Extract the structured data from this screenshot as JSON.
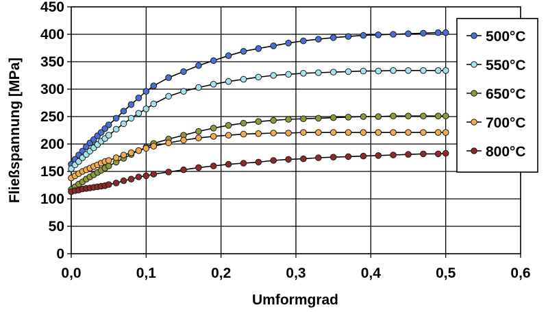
{
  "chart_data": {
    "type": "line",
    "xlabel": "Umformgrad",
    "ylabel": "Fließspannung [MPa]",
    "xlim": [
      0,
      0.6
    ],
    "ylim": [
      0,
      450
    ],
    "x_ticks": [
      "0,0",
      "0,1",
      "0,2",
      "0,3",
      "0,4",
      "0,5",
      "0,6"
    ],
    "y_ticks": [
      "0",
      "50",
      "100",
      "150",
      "200",
      "250",
      "300",
      "350",
      "400",
      "450"
    ],
    "grid": true,
    "legend_position": "right",
    "series": [
      {
        "name": "500°C",
        "color": "#4a6fd0",
        "x": [
          0.0,
          0.005,
          0.01,
          0.015,
          0.02,
          0.025,
          0.03,
          0.035,
          0.04,
          0.045,
          0.05,
          0.06,
          0.07,
          0.08,
          0.09,
          0.1,
          0.11,
          0.13,
          0.15,
          0.17,
          0.19,
          0.21,
          0.23,
          0.25,
          0.27,
          0.29,
          0.31,
          0.33,
          0.35,
          0.37,
          0.39,
          0.41,
          0.43,
          0.45,
          0.47,
          0.49,
          0.5
        ],
        "y": [
          163,
          172,
          180,
          187,
          195,
          202,
          208,
          215,
          221,
          228,
          235,
          247,
          260,
          272,
          284,
          296,
          306,
          321,
          332,
          343,
          352,
          361,
          369,
          374,
          379,
          384,
          388,
          391,
          394,
          396,
          398,
          399,
          400,
          401,
          402,
          403,
          403
        ]
      },
      {
        "name": "550°C",
        "color": "#a6e2ee",
        "x": [
          0.0,
          0.005,
          0.01,
          0.015,
          0.02,
          0.025,
          0.03,
          0.035,
          0.04,
          0.045,
          0.05,
          0.06,
          0.07,
          0.08,
          0.09,
          0.1,
          0.11,
          0.13,
          0.15,
          0.17,
          0.19,
          0.21,
          0.23,
          0.25,
          0.27,
          0.29,
          0.31,
          0.33,
          0.35,
          0.37,
          0.39,
          0.41,
          0.43,
          0.45,
          0.47,
          0.49,
          0.5
        ],
        "y": [
          155,
          162,
          168,
          175,
          181,
          187,
          193,
          199,
          205,
          210,
          216,
          227,
          237,
          247,
          256,
          264,
          273,
          287,
          296,
          303,
          309,
          314,
          318,
          322,
          325,
          327,
          329,
          330,
          331,
          332,
          333,
          333,
          334,
          334,
          334,
          334,
          334
        ]
      },
      {
        "name": "650°C",
        "color": "#8e9a3a",
        "x": [
          0.0,
          0.005,
          0.01,
          0.015,
          0.02,
          0.025,
          0.03,
          0.035,
          0.04,
          0.045,
          0.05,
          0.06,
          0.07,
          0.08,
          0.09,
          0.1,
          0.11,
          0.13,
          0.15,
          0.17,
          0.19,
          0.21,
          0.23,
          0.25,
          0.27,
          0.29,
          0.31,
          0.33,
          0.35,
          0.37,
          0.39,
          0.41,
          0.43,
          0.45,
          0.47,
          0.49,
          0.5
        ],
        "y": [
          117,
          122,
          127,
          131,
          136,
          140,
          144,
          148,
          152,
          156,
          160,
          167,
          174,
          181,
          188,
          194,
          201,
          209,
          216,
          223,
          229,
          234,
          238,
          241,
          243,
          245,
          246,
          247,
          248,
          249,
          250,
          250,
          251,
          251,
          251,
          251,
          251
        ]
      },
      {
        "name": "700°C",
        "color": "#f0aa50",
        "x": [
          0.0,
          0.005,
          0.01,
          0.015,
          0.02,
          0.025,
          0.03,
          0.035,
          0.04,
          0.045,
          0.05,
          0.06,
          0.07,
          0.08,
          0.09,
          0.1,
          0.11,
          0.13,
          0.15,
          0.17,
          0.19,
          0.21,
          0.23,
          0.25,
          0.27,
          0.29,
          0.31,
          0.33,
          0.35,
          0.37,
          0.39,
          0.41,
          0.43,
          0.45,
          0.47,
          0.49,
          0.5
        ],
        "y": [
          138,
          142,
          146,
          150,
          153,
          156,
          159,
          162,
          165,
          168,
          170,
          175,
          180,
          184,
          188,
          192,
          196,
          202,
          207,
          211,
          214,
          216,
          218,
          219,
          220,
          220,
          221,
          221,
          221,
          221,
          221,
          221,
          221,
          221,
          221,
          221,
          221
        ]
      },
      {
        "name": "800°C",
        "color": "#8a2a2a",
        "x": [
          0.0,
          0.005,
          0.01,
          0.015,
          0.02,
          0.025,
          0.03,
          0.035,
          0.04,
          0.045,
          0.05,
          0.06,
          0.07,
          0.08,
          0.09,
          0.1,
          0.11,
          0.13,
          0.15,
          0.17,
          0.19,
          0.21,
          0.23,
          0.25,
          0.27,
          0.29,
          0.31,
          0.33,
          0.35,
          0.37,
          0.39,
          0.41,
          0.43,
          0.45,
          0.47,
          0.49,
          0.5
        ],
        "y": [
          113,
          115,
          116,
          118,
          119,
          120,
          121,
          122,
          123,
          124,
          126,
          129,
          133,
          136,
          140,
          142,
          145,
          149,
          153,
          157,
          160,
          163,
          165,
          167,
          170,
          172,
          173,
          175,
          176,
          177,
          178,
          179,
          180,
          181,
          182,
          182,
          183
        ]
      }
    ]
  }
}
